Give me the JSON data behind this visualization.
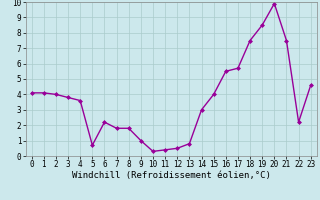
{
  "x": [
    0,
    1,
    2,
    3,
    4,
    5,
    6,
    7,
    8,
    9,
    10,
    11,
    12,
    13,
    14,
    15,
    16,
    17,
    18,
    19,
    20,
    21,
    22,
    23
  ],
  "y": [
    4.1,
    4.1,
    4.0,
    3.8,
    3.6,
    0.7,
    2.2,
    1.8,
    1.8,
    1.0,
    0.3,
    0.4,
    0.5,
    0.8,
    3.0,
    4.0,
    5.5,
    5.7,
    7.5,
    8.5,
    9.9,
    7.5,
    2.2,
    4.6
  ],
  "line_color": "#990099",
  "marker": "D",
  "markersize": 2,
  "linewidth": 1.0,
  "xlabel": "Windchill (Refroidissement éolien,°C)",
  "xlim": [
    -0.5,
    23.5
  ],
  "ylim": [
    0,
    10
  ],
  "yticks": [
    0,
    1,
    2,
    3,
    4,
    5,
    6,
    7,
    8,
    9,
    10
  ],
  "xticks": [
    0,
    1,
    2,
    3,
    4,
    5,
    6,
    7,
    8,
    9,
    10,
    11,
    12,
    13,
    14,
    15,
    16,
    17,
    18,
    19,
    20,
    21,
    22,
    23
  ],
  "bg_color": "#cce8ec",
  "grid_color": "#aacccc",
  "xlabel_fontsize": 6.5,
  "tick_fontsize": 5.5
}
